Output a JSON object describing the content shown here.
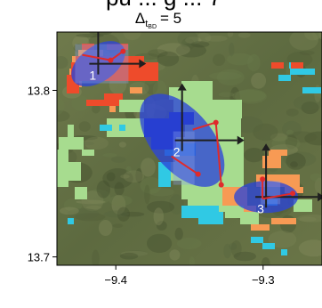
{
  "chart_data": {
    "type": "scatter",
    "title": "Δ",
    "title_sub": "t",
    "title_subsub": "BD",
    "title_value": "= 5",
    "title_partial": "pu ... g ... 7",
    "xlabel": "",
    "ylabel": "",
    "xlim": [
      -9.44,
      -9.26
    ],
    "ylim": [
      13.695,
      13.835
    ],
    "x_ticks": [
      -9.4,
      -9.3
    ],
    "x_tick_labels": [
      "−9.4",
      "−9.3"
    ],
    "y_ticks": [
      13.7,
      13.8
    ],
    "y_tick_labels": [
      "13.7",
      "13.8"
    ],
    "background": "satellite imagery (vegetation)",
    "pixel_layers": [
      {
        "name": "orange",
        "color": "#f79a54"
      },
      {
        "name": "red",
        "color": "#ee4b2b"
      },
      {
        "name": "light green",
        "color": "#a7dc8f"
      },
      {
        "name": "cyan",
        "color": "#30c9e4"
      },
      {
        "name": "dark blue",
        "color": "#1a2bb5"
      }
    ],
    "clusters": [
      {
        "label": "1",
        "center": [
          -9.412,
          13.816
        ],
        "color": "#2b45d8",
        "arrow_color": "#e02a2a",
        "axis_color": "#1f1f1f"
      },
      {
        "label": "2",
        "center": [
          -9.355,
          13.77
        ],
        "color": "#2b45d8",
        "arrow_color": "#e02a2a",
        "axis_color": "#1f1f1f"
      },
      {
        "label": "3",
        "center": [
          -9.298,
          13.736
        ],
        "color": "#2b45d8",
        "arrow_color": "#e02a2a",
        "axis_color": "#1f1f1f"
      }
    ]
  }
}
